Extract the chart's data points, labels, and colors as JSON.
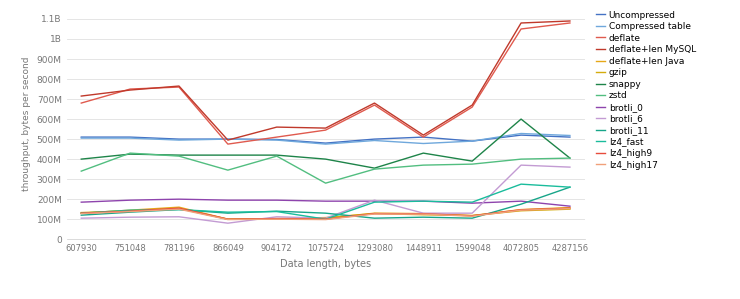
{
  "x_labels": [
    "607930",
    "751048",
    "781196",
    "866049",
    "904172",
    "1075724",
    "1293080",
    "1448911",
    "1599048",
    "4072805",
    "4287156"
  ],
  "series": {
    "Uncompressed": [
      510,
      510,
      500,
      500,
      498,
      480,
      500,
      510,
      490,
      520,
      510
    ],
    "Compressed table": [
      505,
      505,
      495,
      500,
      495,
      475,
      493,
      478,
      490,
      528,
      518
    ],
    "deflate": [
      680,
      750,
      760,
      475,
      510,
      545,
      670,
      510,
      660,
      1050,
      1080
    ],
    "deflate+len MySQL": [
      715,
      745,
      765,
      495,
      560,
      555,
      680,
      520,
      670,
      1080,
      1090
    ],
    "deflate+len Java": [
      130,
      145,
      160,
      100,
      102,
      105,
      130,
      128,
      118,
      148,
      158
    ],
    "gzip": [
      133,
      142,
      153,
      100,
      103,
      108,
      128,
      122,
      118,
      142,
      150
    ],
    "snappy": [
      400,
      425,
      420,
      420,
      420,
      400,
      355,
      430,
      390,
      600,
      405
    ],
    "zstd": [
      340,
      430,
      415,
      345,
      415,
      280,
      350,
      370,
      375,
      400,
      405
    ],
    "brotli_0": [
      185,
      195,
      200,
      195,
      195,
      190,
      190,
      190,
      180,
      190,
      165
    ],
    "brotli_6": [
      105,
      110,
      112,
      80,
      112,
      105,
      195,
      130,
      130,
      370,
      360
    ],
    "brotli_11": [
      120,
      135,
      148,
      130,
      140,
      130,
      105,
      110,
      105,
      175,
      260
    ],
    "lz4_fast": [
      130,
      145,
      148,
      135,
      138,
      100,
      185,
      190,
      185,
      275,
      260
    ],
    "lz4_high9": [
      130,
      140,
      155,
      100,
      103,
      100,
      128,
      127,
      117,
      147,
      155
    ],
    "lz4_high17": [
      128,
      138,
      150,
      98,
      100,
      98,
      126,
      125,
      115,
      145,
      153
    ]
  },
  "colors": {
    "Uncompressed": "#4472C4",
    "Compressed table": "#6FA8DC",
    "deflate": "#E05A4E",
    "deflate+len MySQL": "#C0392B",
    "deflate+len Java": "#E6A817",
    "gzip": "#D4AC0D",
    "snappy": "#1E8449",
    "zstd": "#52BE80",
    "brotli_0": "#8E44AD",
    "brotli_6": "#C39BD3",
    "brotli_11": "#17A589",
    "lz4_fast": "#1ABC9C",
    "lz4_high9": "#E74C3C",
    "lz4_high17": "#F0A07A"
  },
  "ylabel": "throughput, bytes per second",
  "xlabel": "Data length, bytes",
  "ylim_max": 1150,
  "ytick_vals": [
    0,
    100,
    200,
    300,
    400,
    500,
    600,
    700,
    800,
    900,
    1000,
    1100
  ],
  "ytick_labels": [
    "0",
    "100M",
    "200M",
    "300M",
    "400M",
    "500M",
    "600M",
    "700M",
    "800M",
    "900M",
    "1B",
    "1.1B"
  ],
  "background_color": "#ffffff",
  "grid_color": "#e0e0e0"
}
